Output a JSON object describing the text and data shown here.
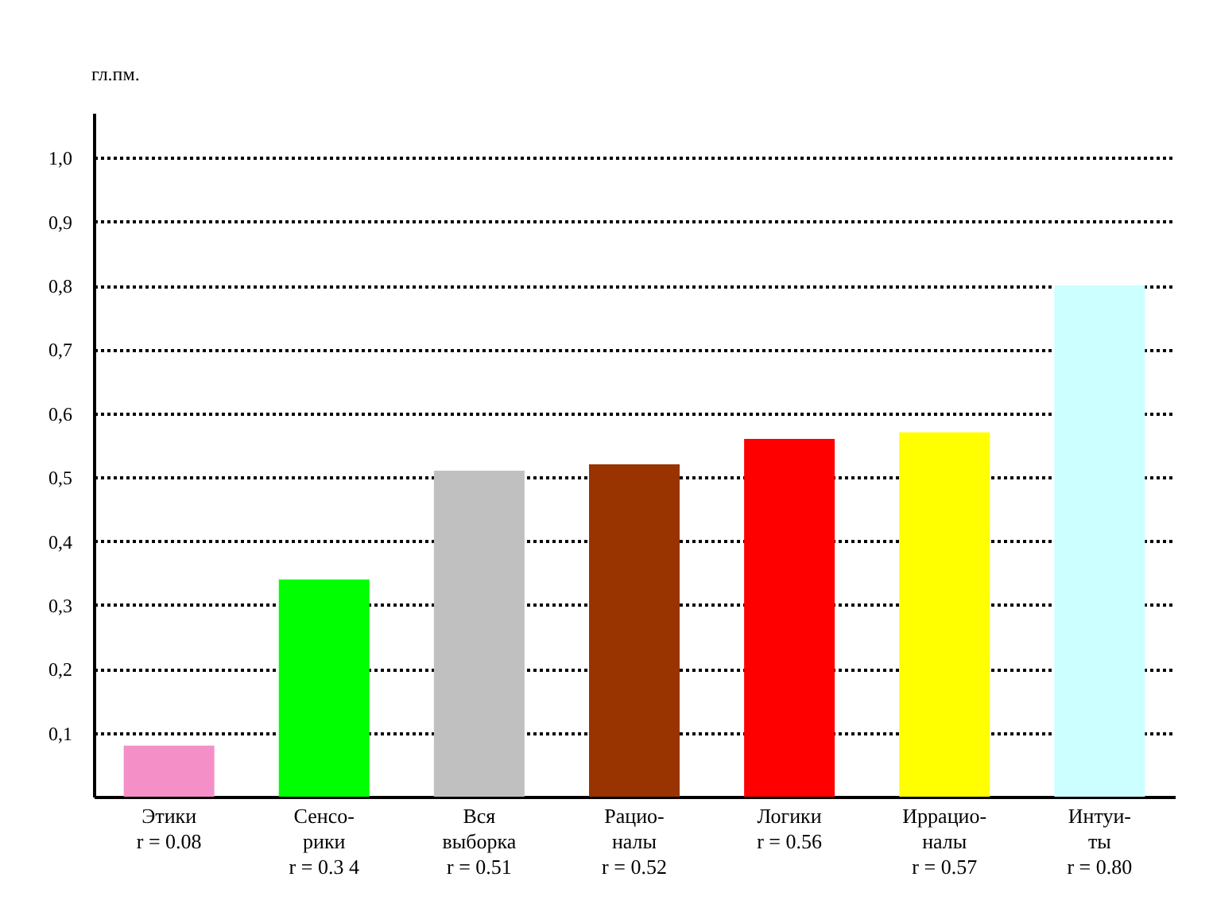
{
  "chart_data": {
    "type": "bar",
    "ylabel": "гл.пм.",
    "categories": [
      "Этики",
      "Сенсо-\nрики",
      "Вся\nвыборка",
      "Рацио-\nналы",
      "Логики",
      "Иррацио-\nналы",
      "Интуи-\nты"
    ],
    "values": [
      0.08,
      0.34,
      0.51,
      0.52,
      0.56,
      0.57,
      0.8
    ],
    "colors": [
      "#f48fc8",
      "#00ff00",
      "#c0c0c0",
      "#993300",
      "#ff0000",
      "#ffff00",
      "#ccffff"
    ],
    "value_labels": [
      "r = 0.08",
      "r = 0.3 4",
      "r = 0.51",
      "r = 0.52",
      "r = 0.56",
      "r = 0.57",
      "r = 0.80"
    ],
    "ylim": [
      0,
      1.07
    ],
    "yticks": [
      {
        "value": 0.1,
        "label": "0,1"
      },
      {
        "value": 0.2,
        "label": "0,2"
      },
      {
        "value": 0.3,
        "label": "0,3"
      },
      {
        "value": 0.4,
        "label": "0,4"
      },
      {
        "value": 0.5,
        "label": "0,5"
      },
      {
        "value": 0.6,
        "label": "0,6"
      },
      {
        "value": 0.7,
        "label": "0,7"
      },
      {
        "value": 0.8,
        "label": "0,8"
      },
      {
        "value": 0.9,
        "label": "0,9"
      },
      {
        "value": 1.0,
        "label": "1,0"
      }
    ],
    "grid": "y"
  }
}
